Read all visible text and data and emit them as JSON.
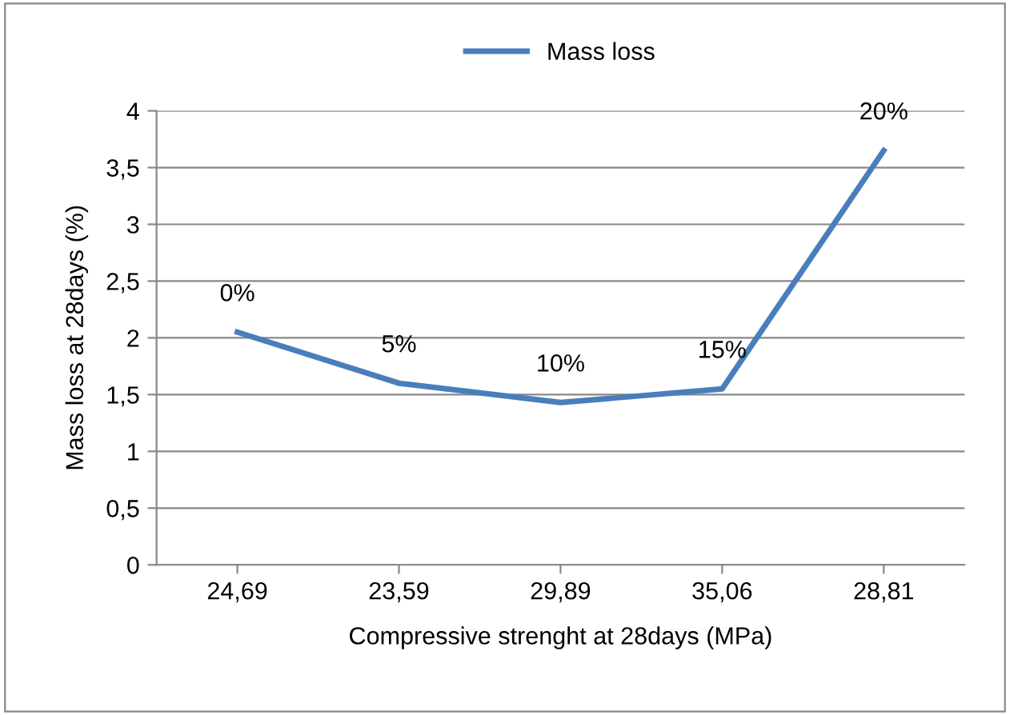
{
  "chart_data": {
    "type": "line",
    "xlabel": "Compressive strenght at 28days (MPa)",
    "ylabel": "Mass loss at 28days (%)",
    "categories": [
      "24,69",
      "23,59",
      "29,89",
      "35,06",
      "28,81"
    ],
    "series": [
      {
        "name": "Mass loss",
        "color": "#4a7ebb",
        "values": [
          2.05,
          1.6,
          1.43,
          1.55,
          3.65
        ]
      }
    ],
    "ylim": [
      0,
      4
    ],
    "yticks": [
      0,
      {
        "value": 0.5,
        "label": "0,5"
      },
      1,
      {
        "value": 1.5,
        "label": "1,5"
      },
      2,
      {
        "value": 2.5,
        "label": "2,5"
      },
      3,
      {
        "value": 3.5,
        "label": "3,5"
      },
      4
    ],
    "annotations": [
      {
        "text": "0%",
        "x": "24,69",
        "y": 2.05
      },
      {
        "text": "5%",
        "x": "23,59",
        "y": 1.6
      },
      {
        "text": "10%",
        "x": "29,89",
        "y": 1.43
      },
      {
        "text": "15%",
        "x": "35,06",
        "y": 1.55
      },
      {
        "text": "20%",
        "x": "28,81",
        "y": 3.65
      }
    ],
    "grid": "y",
    "legend": "top",
    "marker": "none",
    "line_style": "solid"
  }
}
